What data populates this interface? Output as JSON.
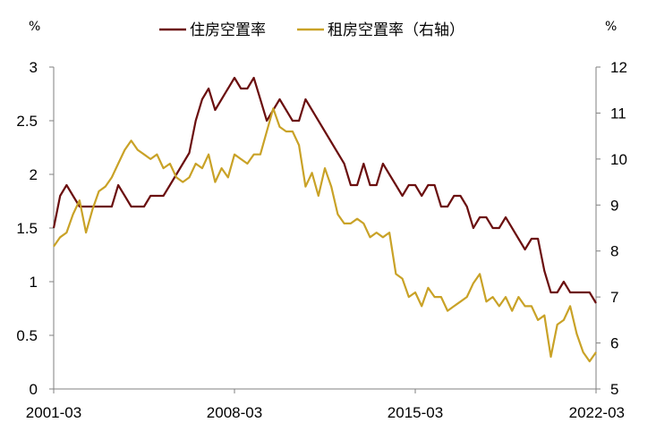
{
  "chart_data": {
    "type": "line",
    "title": "",
    "xlabel": "",
    "left_axis": {
      "unit": "%",
      "ylim": [
        0,
        3
      ],
      "ticks": [
        0,
        0.5,
        1,
        1.5,
        2,
        2.5,
        3
      ]
    },
    "right_axis": {
      "unit": "%",
      "ylim": [
        5,
        12
      ],
      "ticks": [
        5,
        6,
        7,
        8,
        9,
        10,
        11,
        12
      ]
    },
    "x_tick_labels": [
      "2001-03",
      "2008-03",
      "2015-03",
      "2022-03"
    ],
    "x_range": [
      "2001-03",
      "2022-03"
    ],
    "grid": false,
    "legend_placement": "top-center",
    "series": [
      {
        "name": "住房空置率",
        "axis": "left",
        "color": "#6b0f0f",
        "x": [
          "2001-03",
          "2001-06",
          "2001-09",
          "2001-12",
          "2002-03",
          "2002-06",
          "2002-09",
          "2002-12",
          "2003-03",
          "2003-06",
          "2003-09",
          "2003-12",
          "2004-03",
          "2004-06",
          "2004-09",
          "2004-12",
          "2005-03",
          "2005-06",
          "2005-09",
          "2005-12",
          "2006-03",
          "2006-06",
          "2006-09",
          "2006-12",
          "2007-03",
          "2007-06",
          "2007-09",
          "2007-12",
          "2008-03",
          "2008-06",
          "2008-09",
          "2008-12",
          "2009-03",
          "2009-06",
          "2009-09",
          "2009-12",
          "2010-03",
          "2010-06",
          "2010-09",
          "2010-12",
          "2011-03",
          "2011-06",
          "2011-09",
          "2011-12",
          "2012-03",
          "2012-06",
          "2012-09",
          "2012-12",
          "2013-03",
          "2013-06",
          "2013-09",
          "2013-12",
          "2014-03",
          "2014-06",
          "2014-09",
          "2014-12",
          "2015-03",
          "2015-06",
          "2015-09",
          "2015-12",
          "2016-03",
          "2016-06",
          "2016-09",
          "2016-12",
          "2017-03",
          "2017-06",
          "2017-09",
          "2017-12",
          "2018-03",
          "2018-06",
          "2018-09",
          "2018-12",
          "2019-03",
          "2019-06",
          "2019-09",
          "2019-12",
          "2020-03",
          "2020-06",
          "2020-09",
          "2020-12",
          "2021-03",
          "2021-06",
          "2021-09",
          "2021-12",
          "2022-03"
        ],
        "values": [
          1.5,
          1.8,
          1.9,
          1.8,
          1.7,
          1.7,
          1.7,
          1.7,
          1.7,
          1.7,
          1.9,
          1.8,
          1.7,
          1.7,
          1.7,
          1.8,
          1.8,
          1.8,
          1.9,
          2.0,
          2.1,
          2.2,
          2.5,
          2.7,
          2.8,
          2.6,
          2.7,
          2.8,
          2.9,
          2.8,
          2.8,
          2.9,
          2.7,
          2.5,
          2.6,
          2.7,
          2.6,
          2.5,
          2.5,
          2.7,
          2.6,
          2.5,
          2.4,
          2.3,
          2.2,
          2.1,
          1.9,
          1.9,
          2.1,
          1.9,
          1.9,
          2.1,
          2.0,
          1.9,
          1.8,
          1.9,
          1.9,
          1.8,
          1.9,
          1.9,
          1.7,
          1.7,
          1.8,
          1.8,
          1.7,
          1.5,
          1.6,
          1.6,
          1.5,
          1.5,
          1.6,
          1.5,
          1.4,
          1.3,
          1.4,
          1.4,
          1.1,
          0.9,
          0.9,
          1.0,
          0.9,
          0.9,
          0.9,
          0.9,
          0.8
        ]
      },
      {
        "name": "租房空置率（右轴）",
        "axis": "right",
        "color": "#c9a227",
        "x": [
          "2001-03",
          "2001-06",
          "2001-09",
          "2001-12",
          "2002-03",
          "2002-06",
          "2002-09",
          "2002-12",
          "2003-03",
          "2003-06",
          "2003-09",
          "2003-12",
          "2004-03",
          "2004-06",
          "2004-09",
          "2004-12",
          "2005-03",
          "2005-06",
          "2005-09",
          "2005-12",
          "2006-03",
          "2006-06",
          "2006-09",
          "2006-12",
          "2007-03",
          "2007-06",
          "2007-09",
          "2007-12",
          "2008-03",
          "2008-06",
          "2008-09",
          "2008-12",
          "2009-03",
          "2009-06",
          "2009-09",
          "2009-12",
          "2010-03",
          "2010-06",
          "2010-09",
          "2010-12",
          "2011-03",
          "2011-06",
          "2011-09",
          "2011-12",
          "2012-03",
          "2012-06",
          "2012-09",
          "2012-12",
          "2013-03",
          "2013-06",
          "2013-09",
          "2013-12",
          "2014-03",
          "2014-06",
          "2014-09",
          "2014-12",
          "2015-03",
          "2015-06",
          "2015-09",
          "2015-12",
          "2016-03",
          "2016-06",
          "2016-09",
          "2016-12",
          "2017-03",
          "2017-06",
          "2017-09",
          "2017-12",
          "2018-03",
          "2018-06",
          "2018-09",
          "2018-12",
          "2019-03",
          "2019-06",
          "2019-09",
          "2019-12",
          "2020-03",
          "2020-06",
          "2020-09",
          "2020-12",
          "2021-03",
          "2021-06",
          "2021-09",
          "2021-12",
          "2022-03"
        ],
        "values": [
          8.1,
          8.3,
          8.4,
          8.8,
          9.1,
          8.4,
          8.9,
          9.3,
          9.4,
          9.6,
          9.9,
          10.2,
          10.4,
          10.2,
          10.1,
          10.0,
          10.1,
          9.8,
          9.9,
          9.6,
          9.5,
          9.6,
          9.9,
          9.8,
          10.1,
          9.5,
          9.8,
          9.6,
          10.1,
          10.0,
          9.9,
          10.1,
          10.1,
          10.6,
          11.1,
          10.7,
          10.6,
          10.6,
          10.3,
          9.4,
          9.7,
          9.2,
          9.8,
          9.4,
          8.8,
          8.6,
          8.6,
          8.7,
          8.6,
          8.3,
          8.4,
          8.3,
          8.4,
          7.5,
          7.4,
          7.0,
          7.1,
          6.8,
          7.2,
          7.0,
          7.0,
          6.7,
          6.8,
          6.9,
          7.0,
          7.3,
          7.5,
          6.9,
          7.0,
          6.8,
          7.0,
          6.7,
          7.0,
          6.8,
          6.8,
          6.5,
          6.6,
          5.7,
          6.4,
          6.5,
          6.8,
          6.2,
          5.8,
          5.6,
          5.8
        ]
      }
    ]
  }
}
